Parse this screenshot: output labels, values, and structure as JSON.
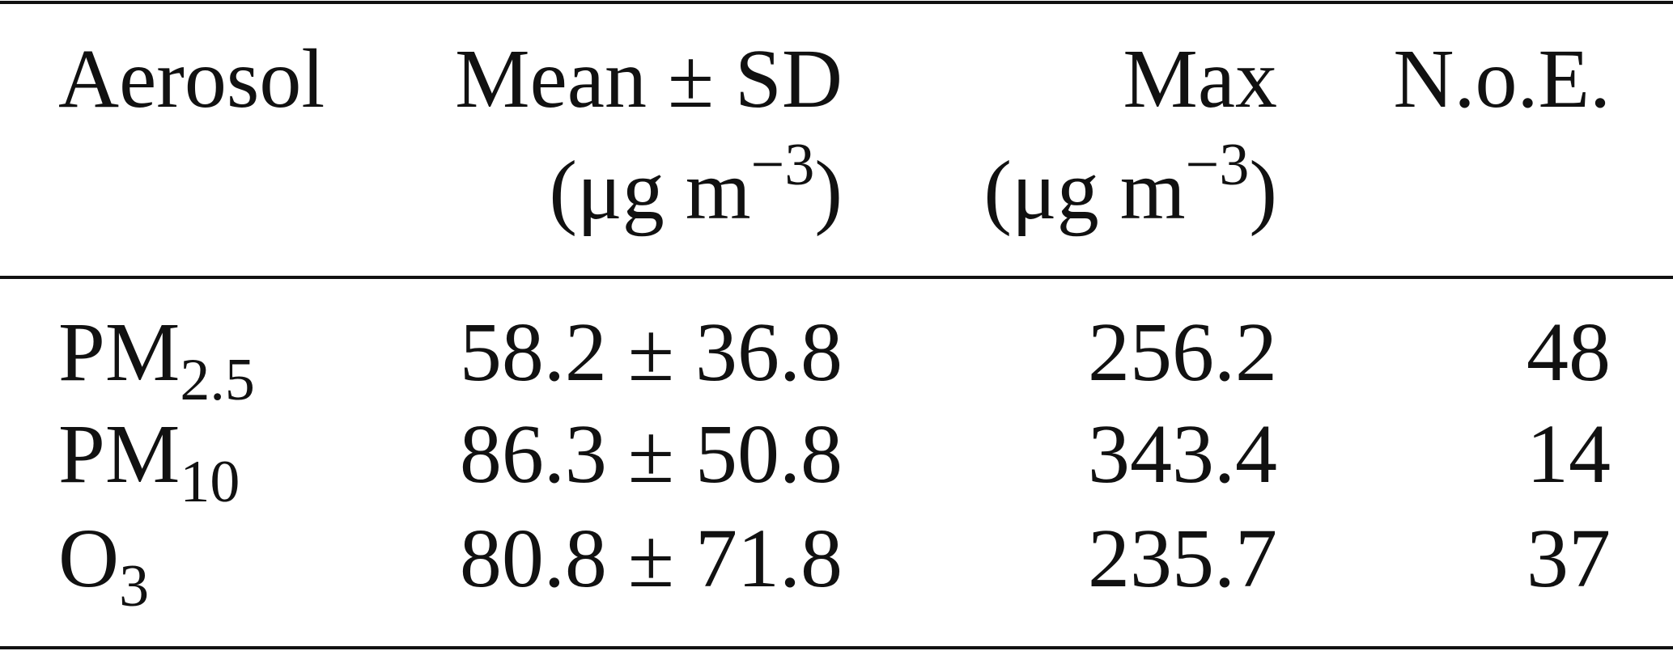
{
  "table": {
    "header": [
      {
        "text": "Aerosol"
      },
      {
        "text": "Mean ± SD",
        "unit": {
          "prefix": "(μg m",
          "sup": "−3",
          "suffix": ")"
        }
      },
      {
        "text": "Max",
        "unit": {
          "prefix": "(μg m",
          "sup": "−3",
          "suffix": ")"
        }
      },
      {
        "text": "N.o.E."
      }
    ],
    "rows": [
      [
        {
          "base": "PM",
          "sub": "2.5"
        },
        "58.2 ± 36.8",
        256.2,
        48
      ],
      [
        {
          "base": "PM",
          "sub": "10"
        },
        "86.3 ± 50.8",
        343.4,
        14
      ],
      [
        {
          "base": "O",
          "sub": "3"
        },
        "80.8 ± 71.8",
        235.7,
        37
      ]
    ]
  }
}
